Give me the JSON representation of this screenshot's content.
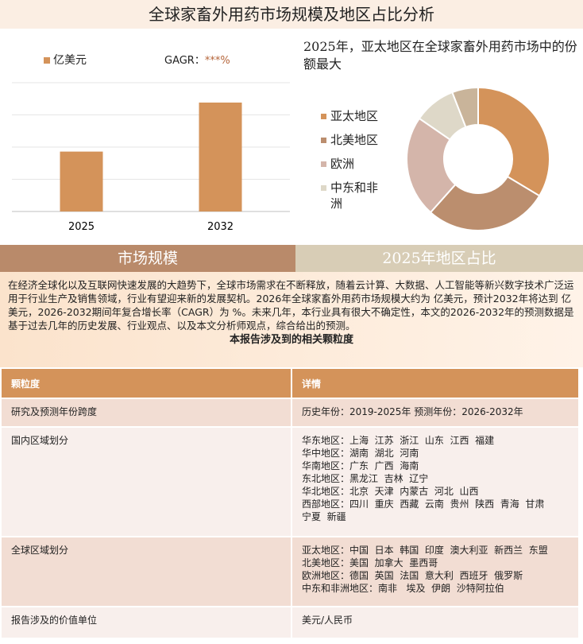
{
  "title": "全球家畜外用药市场规模及地区占比分析",
  "bar_chart": {
    "legend": "亿美元",
    "gagr_label": "GAGR：",
    "gagr_value": "***%"
  },
  "pie_title": "2025年，亚太地区在全球家畜外用药市场中的份额最大",
  "sections": {
    "left": "市场规模",
    "right": "2025年地区占比"
  },
  "paragraph": "在经济全球化以及互联网快速发展的大趋势下，全球市场需求在不断释放，随着云计算、大数据、人工智能等新兴数字技术广泛运用于行业生产及销售领域，行业有望迎来新的发展契机。2026年全球家畜外用药市场规模大约为 亿美元，预计2032年将达到 亿美元，2026-2032期间年复合增长率（CAGR）为 %。未来几年，本行业具有很大不确定性，本文的2026-2032年的预测数据是基于过去几年的历史发展、行业观点、以及本文分析师观点，综合给出的预测。",
  "table_title": "本报告涉及到的相关颗粒度",
  "table": {
    "headers": [
      "颗粒度",
      "详情"
    ],
    "rows": [
      {
        "k": "研究及预测年份跨度",
        "v": [
          "历史年份：2019-2025年 预测年份：2026-2032年"
        ]
      },
      {
        "k": "国内区域划分",
        "v": [
          "华东地区：上海  江苏  浙江  山东  江西  福建",
          "华中地区：湖南  湖北  河南",
          "华南地区：广东  广西  海南",
          "东北地区：黑龙江  吉林  辽宁",
          "华北地区：北京  天津  内蒙古  河北  山西",
          "西部地区：四川  重庆  西藏  云南  贵州  陕西  青海  甘肃",
          "宁夏  新疆"
        ]
      },
      {
        "k": "全球区域划分",
        "v": [
          "亚太地区：中国  日本  韩国  印度  澳大利亚  新西兰  东盟",
          "北美地区：美国  加拿大  墨西哥",
          "欧洲地区：德国  英国  法国  意大利  西班牙  俄罗斯",
          "中东和非洲地区：南非   埃及  伊朗  沙特阿拉伯"
        ]
      },
      {
        "k": "报告涉及的价值单位",
        "v": [
          "美元/人民币"
        ]
      }
    ]
  },
  "chart_data": [
    {
      "type": "bar",
      "categories": [
        "2025",
        "2032"
      ],
      "values": [
        55,
        100
      ],
      "series_name": "亿美元",
      "color": "#D4935A",
      "grid": true,
      "note_values_relative": true
    },
    {
      "type": "pie",
      "style": "donut",
      "categories": [
        "亚太地区",
        "北美地区",
        "欧洲",
        "中东和非洲",
        ""
      ],
      "values": [
        33.6,
        28,
        23,
        9.5,
        5.9
      ],
      "colors": [
        "#D4935A",
        "#BB8E6E",
        "#D4B5AA",
        "#DED8C8",
        "#C9B49A"
      ],
      "legend": "left"
    }
  ]
}
